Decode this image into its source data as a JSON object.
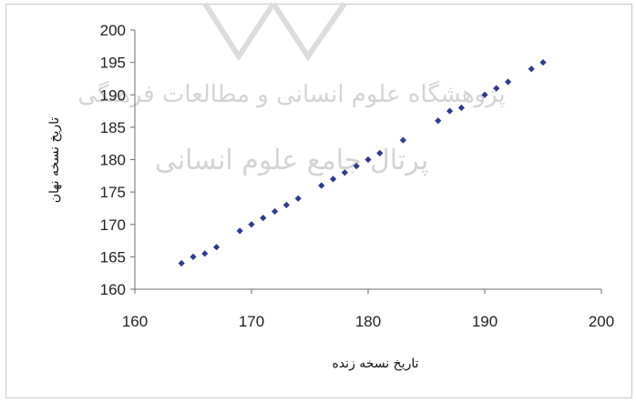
{
  "chart_data": {
    "type": "scatter",
    "title": "",
    "xlabel": "تاریخ نسخه زنده",
    "ylabel": "تاریخ نسخه نهان",
    "xlim": [
      160,
      200
    ],
    "ylim": [
      160,
      200
    ],
    "xticks": [
      160,
      170,
      180,
      190,
      200
    ],
    "yticks": [
      160,
      165,
      170,
      175,
      180,
      185,
      190,
      195,
      200
    ],
    "grid": false,
    "legend": "none",
    "marker_color": "#2e3b8f",
    "marker": "diamond",
    "points": [
      {
        "x": 164,
        "y": 164
      },
      {
        "x": 165,
        "y": 165
      },
      {
        "x": 166,
        "y": 165.5
      },
      {
        "x": 167,
        "y": 166.5
      },
      {
        "x": 169,
        "y": 169
      },
      {
        "x": 170,
        "y": 170
      },
      {
        "x": 171,
        "y": 171
      },
      {
        "x": 172,
        "y": 172
      },
      {
        "x": 173,
        "y": 173
      },
      {
        "x": 174,
        "y": 174
      },
      {
        "x": 176,
        "y": 176
      },
      {
        "x": 177,
        "y": 177
      },
      {
        "x": 178,
        "y": 178
      },
      {
        "x": 179,
        "y": 179
      },
      {
        "x": 180,
        "y": 180
      },
      {
        "x": 181,
        "y": 181
      },
      {
        "x": 183,
        "y": 183
      },
      {
        "x": 186,
        "y": 186
      },
      {
        "x": 187,
        "y": 187.5
      },
      {
        "x": 188,
        "y": 188
      },
      {
        "x": 190,
        "y": 190
      },
      {
        "x": 191,
        "y": 191
      },
      {
        "x": 192,
        "y": 192
      },
      {
        "x": 194,
        "y": 194
      },
      {
        "x": 195,
        "y": 195
      }
    ]
  },
  "watermark": {
    "line1": "پژوهشگاه علوم انسانی و مطالعات فرهنگی",
    "line2": "پرتال جامع علوم انسانی"
  }
}
